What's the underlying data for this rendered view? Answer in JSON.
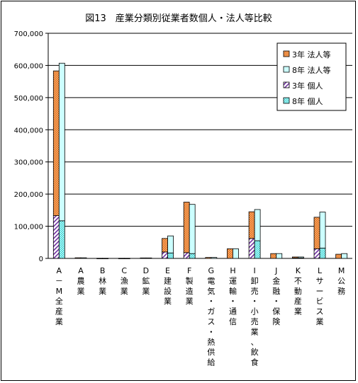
{
  "chart_data": {
    "type": "bar",
    "title": "図13　産業分類別従業者数個人・法人等比較",
    "xlabel": "",
    "ylabel": "",
    "ylim": [
      0,
      700000
    ],
    "yticks": [
      "0",
      "100,000",
      "200,000",
      "300,000",
      "400,000",
      "500,000",
      "600,000",
      "700,000"
    ],
    "grid": "horizontal",
    "legend_position": "top-right",
    "categories": [
      "A－M全産業",
      "A農業",
      "B林業",
      "C漁業",
      "D鉱業",
      "E建設業",
      "F製造業",
      "G電気・ガス・熱供給",
      "H運輸・通信",
      "I卸売・小売業、飲食",
      "J金融・保険",
      "K不動産業",
      "Lサービス業",
      "M公務"
    ],
    "groups": [
      {
        "name": "3年",
        "series": [
          {
            "name": "3年 個人",
            "values": [
              133000,
              0,
              0,
              0,
              0,
              20000,
              18000,
              0,
              0,
              62000,
              0,
              1500,
              30000,
              0
            ],
            "color": "#9a5aa4",
            "pattern": "hatch"
          },
          {
            "name": "3年 法人等",
            "values": [
              450000,
              2000,
              500,
              500,
              1500,
              42000,
              157000,
              3000,
              30000,
              83000,
              15000,
              3000,
              98000,
              13000
            ],
            "color": "#ee8033",
            "pattern": "dots"
          }
        ]
      },
      {
        "name": "8年",
        "series": [
          {
            "name": "8年 個人",
            "values": [
              117000,
              0,
              0,
              0,
              0,
              17000,
              15000,
              0,
              0,
              55000,
              0,
              1500,
              32000,
              0
            ],
            "color": "#33cccc",
            "pattern": "dots"
          },
          {
            "name": "8年 法人等",
            "values": [
              490000,
              2000,
              500,
              500,
              1500,
              53000,
              153000,
              3000,
              30000,
              97000,
              15000,
              3000,
              112000,
              15000
            ],
            "color": "#ccffff",
            "pattern": "solid"
          }
        ]
      }
    ],
    "legend": [
      "3年 法人等",
      "8年 法人等",
      "3年 個人",
      "8年 個人"
    ]
  }
}
